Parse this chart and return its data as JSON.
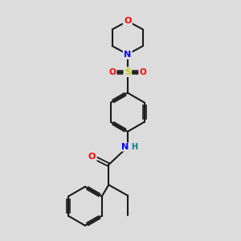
{
  "bg_color": "#dcdcdc",
  "bond_color": "#1a1a1a",
  "atom_colors": {
    "O": "#ff0000",
    "N": "#0000ff",
    "S": "#cccc00",
    "NH_N": "#0000ff",
    "NH_H": "#008080",
    "C": "#1a1a1a"
  },
  "figsize": [
    3.0,
    3.0
  ],
  "dpi": 100
}
